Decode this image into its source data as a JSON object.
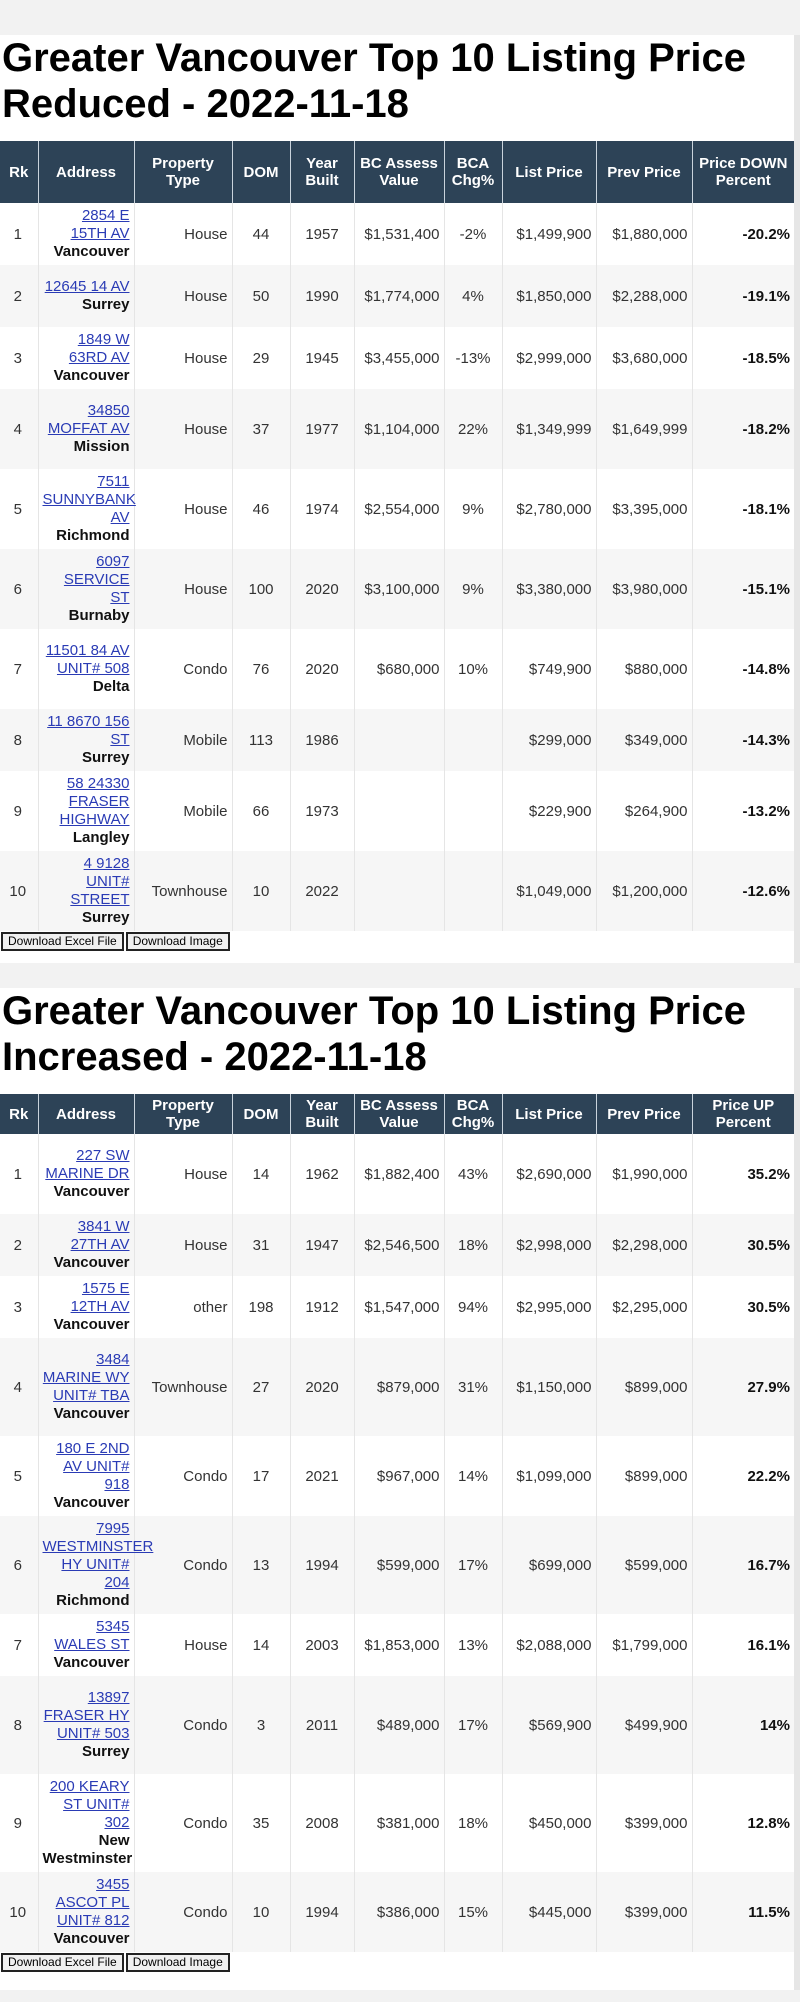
{
  "reduced": {
    "title": "Greater Vancouver Top 10 Listing Price Reduced - 2022-11-18",
    "headers": [
      "Rk",
      "Address",
      "Property Type",
      "DOM",
      "Year Built",
      "BC Assess Value",
      "BCA Chg%",
      "List Price",
      "Prev Price",
      "Price DOWN Percent"
    ],
    "rows": [
      {
        "rank": "1",
        "address": "2854 E 15TH AV",
        "city": "Vancouver",
        "type": "House",
        "dom": "44",
        "year": "1957",
        "assess": "$1,531,400",
        "bca": "-2%",
        "list": "$1,499,900",
        "prev": "$1,880,000",
        "pct": "-20.2%"
      },
      {
        "rank": "2",
        "address": "12645 14 AV",
        "city": "Surrey",
        "type": "House",
        "dom": "50",
        "year": "1990",
        "assess": "$1,774,000",
        "bca": "4%",
        "list": "$1,850,000",
        "prev": "$2,288,000",
        "pct": "-19.1%"
      },
      {
        "rank": "3",
        "address": "1849 W 63RD AV",
        "city": "Vancouver",
        "type": "House",
        "dom": "29",
        "year": "1945",
        "assess": "$3,455,000",
        "bca": "-13%",
        "list": "$2,999,000",
        "prev": "$3,680,000",
        "pct": "-18.5%"
      },
      {
        "rank": "4",
        "address": "34850 MOFFAT AV",
        "city": "Mission",
        "type": "House",
        "dom": "37",
        "year": "1977",
        "assess": "$1,104,000",
        "bca": "22%",
        "list": "$1,349,999",
        "prev": "$1,649,999",
        "pct": "-18.2%"
      },
      {
        "rank": "5",
        "address": "7511 SUNNYBANK AV",
        "city": "Richmond",
        "type": "House",
        "dom": "46",
        "year": "1974",
        "assess": "$2,554,000",
        "bca": "9%",
        "list": "$2,780,000",
        "prev": "$3,395,000",
        "pct": "-18.1%"
      },
      {
        "rank": "6",
        "address": "6097 SERVICE ST",
        "city": "Burnaby",
        "type": "House",
        "dom": "100",
        "year": "2020",
        "assess": "$3,100,000",
        "bca": "9%",
        "list": "$3,380,000",
        "prev": "$3,980,000",
        "pct": "-15.1%"
      },
      {
        "rank": "7",
        "address": "11501 84 AV UNIT# 508",
        "city": "Delta",
        "type": "Condo",
        "dom": "76",
        "year": "2020",
        "assess": "$680,000",
        "bca": "10%",
        "list": "$749,900",
        "prev": "$880,000",
        "pct": "-14.8%"
      },
      {
        "rank": "8",
        "address": "11 8670 156 ST",
        "city": "Surrey",
        "type": "Mobile",
        "dom": "113",
        "year": "1986",
        "assess": "",
        "bca": "",
        "list": "$299,000",
        "prev": "$349,000",
        "pct": "-14.3%"
      },
      {
        "rank": "9",
        "address": "58 24330 FRASER HIGHWAY",
        "city": "Langley",
        "type": "Mobile",
        "dom": "66",
        "year": "1973",
        "assess": "",
        "bca": "",
        "list": "$229,900",
        "prev": "$264,900",
        "pct": "-13.2%"
      },
      {
        "rank": "10",
        "address": "4 9128 UNIT# STREET",
        "city": "Surrey",
        "type": "Townhouse",
        "dom": "10",
        "year": "2022",
        "assess": "",
        "bca": "",
        "list": "$1,049,000",
        "prev": "$1,200,000",
        "pct": "-12.6%"
      }
    ],
    "buttons": {
      "excel": "Download Excel File",
      "image": "Download Image"
    }
  },
  "increased": {
    "title": "Greater Vancouver Top 10 Listing Price Increased - 2022-11-18",
    "headers": [
      "Rk",
      "Address",
      "Property Type",
      "DOM",
      "Year Built",
      "BC Assess Value",
      "BCA Chg%",
      "List Price",
      "Prev Price",
      "Price UP Percent"
    ],
    "rows": [
      {
        "rank": "1",
        "address": "227 SW MARINE DR",
        "city": "Vancouver",
        "type": "House",
        "dom": "14",
        "year": "1962",
        "assess": "$1,882,400",
        "bca": "43%",
        "list": "$2,690,000",
        "prev": "$1,990,000",
        "pct": "35.2%"
      },
      {
        "rank": "2",
        "address": "3841 W 27TH AV",
        "city": "Vancouver",
        "type": "House",
        "dom": "31",
        "year": "1947",
        "assess": "$2,546,500",
        "bca": "18%",
        "list": "$2,998,000",
        "prev": "$2,298,000",
        "pct": "30.5%"
      },
      {
        "rank": "3",
        "address": "1575 E 12TH AV",
        "city": "Vancouver",
        "type": "other",
        "dom": "198",
        "year": "1912",
        "assess": "$1,547,000",
        "bca": "94%",
        "list": "$2,995,000",
        "prev": "$2,295,000",
        "pct": "30.5%"
      },
      {
        "rank": "4",
        "address": "3484 MARINE WY UNIT# TBA",
        "city": "Vancouver",
        "type": "Townhouse",
        "dom": "27",
        "year": "2020",
        "assess": "$879,000",
        "bca": "31%",
        "list": "$1,150,000",
        "prev": "$899,000",
        "pct": "27.9%"
      },
      {
        "rank": "5",
        "address": "180 E 2ND AV UNIT# 918",
        "city": "Vancouver",
        "type": "Condo",
        "dom": "17",
        "year": "2021",
        "assess": "$967,000",
        "bca": "14%",
        "list": "$1,099,000",
        "prev": "$899,000",
        "pct": "22.2%"
      },
      {
        "rank": "6",
        "address": "7995 WESTMINSTER HY UNIT# 204",
        "city": "Richmond",
        "type": "Condo",
        "dom": "13",
        "year": "1994",
        "assess": "$599,000",
        "bca": "17%",
        "list": "$699,000",
        "prev": "$599,000",
        "pct": "16.7%"
      },
      {
        "rank": "7",
        "address": "5345 WALES ST",
        "city": "Vancouver",
        "type": "House",
        "dom": "14",
        "year": "2003",
        "assess": "$1,853,000",
        "bca": "13%",
        "list": "$2,088,000",
        "prev": "$1,799,000",
        "pct": "16.1%"
      },
      {
        "rank": "8",
        "address": "13897 FRASER HY UNIT# 503",
        "city": "Surrey",
        "type": "Condo",
        "dom": "3",
        "year": "2011",
        "assess": "$489,000",
        "bca": "17%",
        "list": "$569,900",
        "prev": "$499,900",
        "pct": "14%"
      },
      {
        "rank": "9",
        "address": "200 KEARY ST UNIT# 302",
        "city": "New Westminster",
        "type": "Condo",
        "dom": "35",
        "year": "2008",
        "assess": "$381,000",
        "bca": "18%",
        "list": "$450,000",
        "prev": "$399,000",
        "pct": "12.8%"
      },
      {
        "rank": "10",
        "address": "3455 ASCOT PL UNIT# 812",
        "city": "Vancouver",
        "type": "Condo",
        "dom": "10",
        "year": "1994",
        "assess": "$386,000",
        "bca": "15%",
        "list": "$445,000",
        "prev": "$399,000",
        "pct": "11.5%"
      }
    ],
    "buttons": {
      "excel": "Download Excel File",
      "image": "Download Image"
    }
  }
}
